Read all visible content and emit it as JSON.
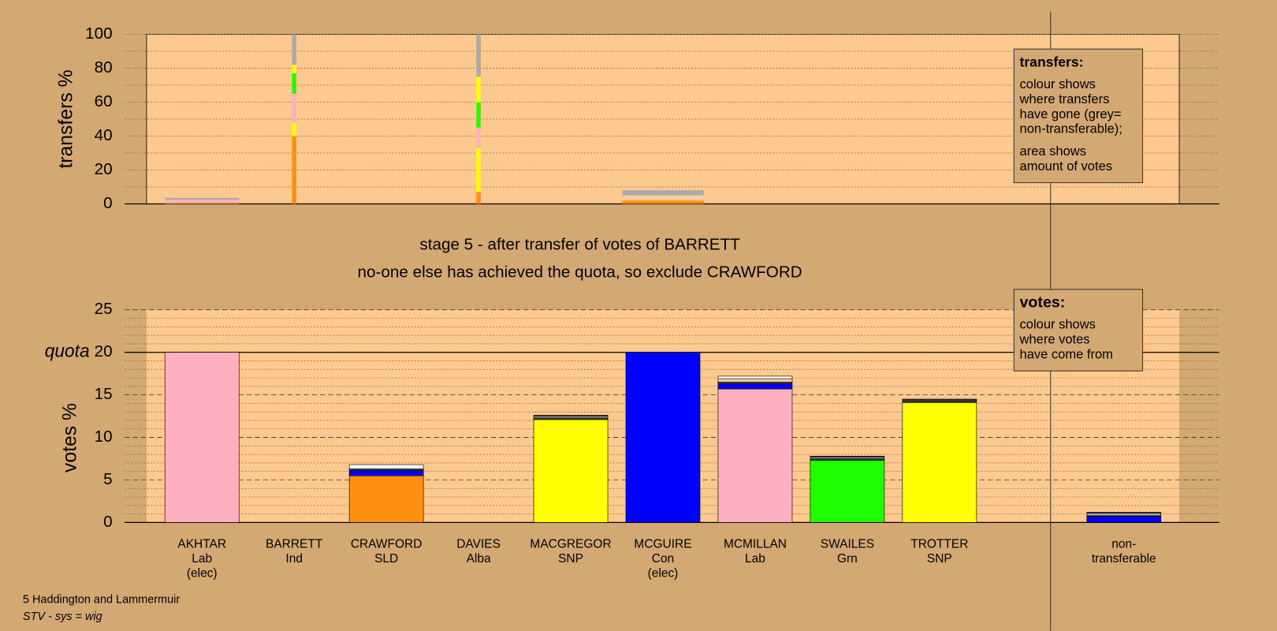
{
  "chart_data": {
    "type": "stv-stage",
    "title": "stage 5 - after transfer of votes of BARRETT",
    "subtitle": "no-one else has achieved the quota, so exclude CRAWFORD",
    "footer": [
      "5 Haddington and Lammermuir",
      "STV - sys = wig"
    ],
    "categories": [
      [
        "AKHTAR",
        "Lab",
        "(elec)"
      ],
      [
        "BARRETT",
        "Ind"
      ],
      [
        "CRAWFORD",
        "SLD"
      ],
      [
        "DAVIES",
        "Alba"
      ],
      [
        "MACGREGOR",
        "SNP"
      ],
      [
        "MCGUIRE",
        "Con",
        "(elec)"
      ],
      [
        "MCMILLAN",
        "Lab"
      ],
      [
        "SWAILES",
        "Grn"
      ],
      [
        "TROTTER",
        "SNP"
      ],
      null,
      [
        "non-",
        "transferable"
      ]
    ],
    "transfers": {
      "ylabel": "transfers %",
      "ylim": [
        0,
        100
      ],
      "yticks": [
        0,
        20,
        40,
        60,
        80,
        100
      ],
      "minor_step": 10,
      "widths": [
        1.0,
        0.06,
        null,
        0.06,
        null,
        1.1,
        null,
        null,
        null,
        null,
        null
      ],
      "stacks": [
        [
          {
            "color": "#ff9010",
            "value": 0.5
          },
          {
            "color": "#ffb0c0",
            "value": 2
          },
          {
            "color": "#aaaaaa",
            "value": 1
          }
        ],
        [
          {
            "color": "#ff9010",
            "value": 40
          },
          {
            "color": "#ffff00",
            "value": 8
          },
          {
            "color": "#ffb0c0",
            "value": 17
          },
          {
            "color": "#20ff00",
            "value": 12
          },
          {
            "color": "#ffff00",
            "value": 5
          },
          {
            "color": "#aaaaaa",
            "value": 18
          }
        ],
        [],
        [
          {
            "color": "#ff9010",
            "value": 7
          },
          {
            "color": "#ffff00",
            "value": 26
          },
          {
            "color": "#ffb0c0",
            "value": 12
          },
          {
            "color": "#20ff00",
            "value": 15
          },
          {
            "color": "#ffff00",
            "value": 15
          },
          {
            "color": "#aaaaaa",
            "value": 25
          }
        ],
        [],
        [
          {
            "color": "#ff9010",
            "value": 2
          },
          {
            "color": "#ffcca0",
            "value": 3
          },
          {
            "color": "#aaaaaa",
            "value": 3
          }
        ],
        [],
        [],
        [],
        [],
        []
      ],
      "legend": {
        "title": "transfers:",
        "lines": [
          "colour shows",
          "where transfers",
          "have gone (grey=",
          "non-transferable);",
          "area shows",
          "amount of votes"
        ]
      }
    },
    "votes": {
      "ylabel": "votes %",
      "ylim": [
        0,
        25
      ],
      "yticks": [
        0,
        5,
        10,
        15,
        20,
        25
      ],
      "minor_step": 1,
      "quota": {
        "value": 20,
        "label": "quota"
      },
      "stacks": [
        [
          {
            "color": "#ffb0c0",
            "value": 20
          }
        ],
        [],
        [
          {
            "color": "#ff9010",
            "value": 5.5
          },
          {
            "color": "#0000ff",
            "value": 0.6
          },
          {
            "color": "#404040",
            "value": 0.2
          },
          {
            "color": "#ffffff",
            "value": 0.5
          }
        ],
        [],
        [
          {
            "color": "#ffff00",
            "value": 12.1
          },
          {
            "color": "#404040",
            "value": 0.2
          },
          {
            "color": "#aaaaaa",
            "value": 0.2
          },
          {
            "color": "#404040",
            "value": 0.1
          }
        ],
        [
          {
            "color": "#0000ff",
            "value": 20
          }
        ],
        [
          {
            "color": "#ffb0c0",
            "value": 15.7
          },
          {
            "color": "#0000ff",
            "value": 0.6
          },
          {
            "color": "#404040",
            "value": 0.2
          },
          {
            "color": "#ffcca0",
            "value": 0.4
          },
          {
            "color": "#ffffff",
            "value": 0.3
          }
        ],
        [
          {
            "color": "#20ff00",
            "value": 7.3
          },
          {
            "color": "#404040",
            "value": 0.2
          },
          {
            "color": "#aaaaaa",
            "value": 0.2
          },
          {
            "color": "#404040",
            "value": 0.1
          }
        ],
        [
          {
            "color": "#ffff00",
            "value": 14.1
          },
          {
            "color": "#404040",
            "value": 0.2
          },
          {
            "color": "#aaaaaa",
            "value": 0.1
          },
          {
            "color": "#404040",
            "value": 0.1
          }
        ],
        [],
        [
          {
            "color": "#0000ff",
            "value": 0.7
          },
          {
            "color": "#404040",
            "value": 0.1
          },
          {
            "color": "#aaaaaa",
            "value": 0.3
          },
          {
            "color": "#404040",
            "value": 0.1
          }
        ]
      ],
      "legend": {
        "title": "votes:",
        "lines": [
          "colour shows",
          "where votes",
          "have come from"
        ]
      }
    }
  }
}
